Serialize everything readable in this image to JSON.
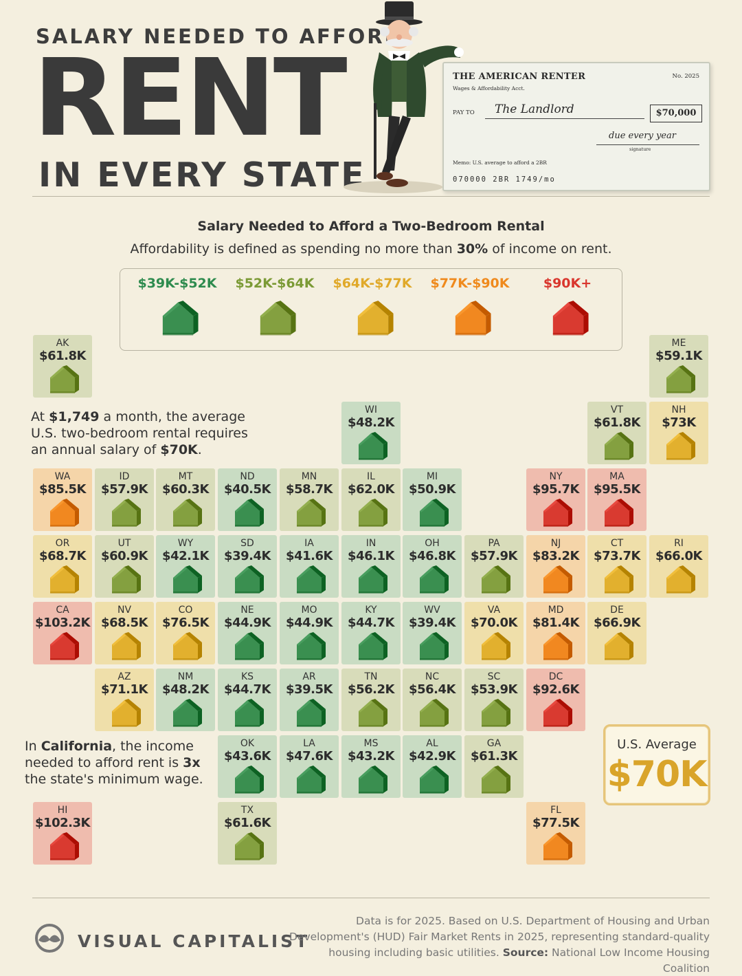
{
  "header": {
    "title_top": "SALARY NEEDED TO AFFORD",
    "title_big": "RENT",
    "title_bottom": "IN EVERY STATE"
  },
  "check": {
    "bank": "THE AMERICAN RENTER",
    "act": "Wages & Affordability Acct.",
    "number": "No. 2025",
    "pay_to_label": "PAY TO",
    "payee": "The Landlord",
    "amount": "$70,000",
    "signature": "due every year",
    "signature_label": "signature",
    "memo": "Memo: U.S. average to afford a 2BR",
    "micr": "070000  2BR  1749/mo"
  },
  "subtitle": "Salary Needed to Afford a Two-Bedroom Rental",
  "description": {
    "before": "Affordability is defined as spending no more than ",
    "bold": "30%",
    "after": " of income on rent."
  },
  "legend": [
    {
      "label": "$39K-$52K",
      "color": "#2e8b4e",
      "house": "#3a8f50"
    },
    {
      "label": "$52K-$64K",
      "color": "#7b9a35",
      "house": "#84a040"
    },
    {
      "label": "$64K-$77K",
      "color": "#e0a92a",
      "house": "#e2b02e"
    },
    {
      "label": "$77K-$90K",
      "color": "#ef8a1d",
      "house": "#f18820"
    },
    {
      "label": "$90K+",
      "color": "#d9362d",
      "house": "#d93a30"
    }
  ],
  "tiers": {
    "t1": {
      "tile": "#c9dcc3",
      "house": "#3a8f50"
    },
    "t2": {
      "tile": "#d8dcba",
      "house": "#84a040"
    },
    "t3": {
      "tile": "#efdfaa",
      "house": "#e2b02e"
    },
    "t4": {
      "tile": "#f5d5a9",
      "house": "#f18820"
    },
    "t5": {
      "tile": "#efbcae",
      "house": "#d93a30"
    }
  },
  "states": [
    {
      "abbr": "AK",
      "value": "$61.8K",
      "tier": "t2",
      "col": 0,
      "row": 0
    },
    {
      "abbr": "ME",
      "value": "$59.1K",
      "tier": "t2",
      "col": 10,
      "row": 0
    },
    {
      "abbr": "WI",
      "value": "$48.2K",
      "tier": "t1",
      "col": 5,
      "row": 1
    },
    {
      "abbr": "VT",
      "value": "$61.8K",
      "tier": "t2",
      "col": 9,
      "row": 1
    },
    {
      "abbr": "NH",
      "value": "$73K",
      "tier": "t3",
      "col": 10,
      "row": 1
    },
    {
      "abbr": "WA",
      "value": "$85.5K",
      "tier": "t4",
      "col": 0,
      "row": 2
    },
    {
      "abbr": "ID",
      "value": "$57.9K",
      "tier": "t2",
      "col": 1,
      "row": 2
    },
    {
      "abbr": "MT",
      "value": "$60.3K",
      "tier": "t2",
      "col": 2,
      "row": 2
    },
    {
      "abbr": "ND",
      "value": "$40.5K",
      "tier": "t1",
      "col": 3,
      "row": 2
    },
    {
      "abbr": "MN",
      "value": "$58.7K",
      "tier": "t2",
      "col": 4,
      "row": 2
    },
    {
      "abbr": "IL",
      "value": "$62.0K",
      "tier": "t2",
      "col": 5,
      "row": 2
    },
    {
      "abbr": "MI",
      "value": "$50.9K",
      "tier": "t1",
      "col": 6,
      "row": 2
    },
    {
      "abbr": "NY",
      "value": "$95.7K",
      "tier": "t5",
      "col": 8,
      "row": 2
    },
    {
      "abbr": "MA",
      "value": "$95.5K",
      "tier": "t5",
      "col": 9,
      "row": 2
    },
    {
      "abbr": "OR",
      "value": "$68.7K",
      "tier": "t3",
      "col": 0,
      "row": 3
    },
    {
      "abbr": "UT",
      "value": "$60.9K",
      "tier": "t2",
      "col": 1,
      "row": 3
    },
    {
      "abbr": "WY",
      "value": "$42.1K",
      "tier": "t1",
      "col": 2,
      "row": 3
    },
    {
      "abbr": "SD",
      "value": "$39.4K",
      "tier": "t1",
      "col": 3,
      "row": 3
    },
    {
      "abbr": "IA",
      "value": "$41.6K",
      "tier": "t1",
      "col": 4,
      "row": 3
    },
    {
      "abbr": "IN",
      "value": "$46.1K",
      "tier": "t1",
      "col": 5,
      "row": 3
    },
    {
      "abbr": "OH",
      "value": "$46.8K",
      "tier": "t1",
      "col": 6,
      "row": 3
    },
    {
      "abbr": "PA",
      "value": "$57.9K",
      "tier": "t2",
      "col": 7,
      "row": 3
    },
    {
      "abbr": "NJ",
      "value": "$83.2K",
      "tier": "t4",
      "col": 8,
      "row": 3
    },
    {
      "abbr": "CT",
      "value": "$73.7K",
      "tier": "t3",
      "col": 9,
      "row": 3
    },
    {
      "abbr": "RI",
      "value": "$66.0K",
      "tier": "t3",
      "col": 10,
      "row": 3
    },
    {
      "abbr": "CA",
      "value": "$103.2K",
      "tier": "t5",
      "col": 0,
      "row": 4
    },
    {
      "abbr": "NV",
      "value": "$68.5K",
      "tier": "t3",
      "col": 1,
      "row": 4
    },
    {
      "abbr": "CO",
      "value": "$76.5K",
      "tier": "t3",
      "col": 2,
      "row": 4
    },
    {
      "abbr": "NE",
      "value": "$44.9K",
      "tier": "t1",
      "col": 3,
      "row": 4
    },
    {
      "abbr": "MO",
      "value": "$44.9K",
      "tier": "t1",
      "col": 4,
      "row": 4
    },
    {
      "abbr": "KY",
      "value": "$44.7K",
      "tier": "t1",
      "col": 5,
      "row": 4
    },
    {
      "abbr": "WV",
      "value": "$39.4K",
      "tier": "t1",
      "col": 6,
      "row": 4
    },
    {
      "abbr": "VA",
      "value": "$70.0K",
      "tier": "t3",
      "col": 7,
      "row": 4
    },
    {
      "abbr": "MD",
      "value": "$81.4K",
      "tier": "t4",
      "col": 8,
      "row": 4
    },
    {
      "abbr": "DE",
      "value": "$66.9K",
      "tier": "t3",
      "col": 9,
      "row": 4
    },
    {
      "abbr": "AZ",
      "value": "$71.1K",
      "tier": "t3",
      "col": 1,
      "row": 5
    },
    {
      "abbr": "NM",
      "value": "$48.2K",
      "tier": "t1",
      "col": 2,
      "row": 5
    },
    {
      "abbr": "KS",
      "value": "$44.7K",
      "tier": "t1",
      "col": 3,
      "row": 5
    },
    {
      "abbr": "AR",
      "value": "$39.5K",
      "tier": "t1",
      "col": 4,
      "row": 5
    },
    {
      "abbr": "TN",
      "value": "$56.2K",
      "tier": "t2",
      "col": 5,
      "row": 5
    },
    {
      "abbr": "NC",
      "value": "$56.4K",
      "tier": "t2",
      "col": 6,
      "row": 5
    },
    {
      "abbr": "SC",
      "value": "$53.9K",
      "tier": "t2",
      "col": 7,
      "row": 5
    },
    {
      "abbr": "DC",
      "value": "$92.6K",
      "tier": "t5",
      "col": 8,
      "row": 5
    },
    {
      "abbr": "OK",
      "value": "$43.6K",
      "tier": "t1",
      "col": 3,
      "row": 6
    },
    {
      "abbr": "LA",
      "value": "$47.6K",
      "tier": "t1",
      "col": 4,
      "row": 6
    },
    {
      "abbr": "MS",
      "value": "$43.2K",
      "tier": "t1",
      "col": 5,
      "row": 6
    },
    {
      "abbr": "AL",
      "value": "$42.9K",
      "tier": "t1",
      "col": 6,
      "row": 6
    },
    {
      "abbr": "GA",
      "value": "$61.3K",
      "tier": "t2",
      "col": 7,
      "row": 6
    },
    {
      "abbr": "HI",
      "value": "$102.3K",
      "tier": "t5",
      "col": 0,
      "row": 7
    },
    {
      "abbr": "TX",
      "value": "$61.6K",
      "tier": "t2",
      "col": 3,
      "row": 7
    },
    {
      "abbr": "FL",
      "value": "$77.5K",
      "tier": "t4",
      "col": 8,
      "row": 7
    }
  ],
  "note_avg": {
    "p1": "At ",
    "b1": "$1,749",
    "p2": " a month, the average U.S. two-bedroom rental requires an annual salary of ",
    "b2": "$70K",
    "p3": "."
  },
  "note_ca": {
    "p1": "In ",
    "b1": "California",
    "p2": ", the income needed to afford rent is ",
    "b2": "3x",
    "p3": " the state's minimum wage."
  },
  "us_average": {
    "label": "U.S. Average",
    "value": "$70K"
  },
  "footer": {
    "brand": "VISUAL CAPITALIST",
    "source_text": "Data is for 2025. Based on U.S. Department of Housing and Urban Development's (HUD) Fair Market Rents in 2025, representing standard-quality housing including basic utilities. ",
    "source_label": "Source:",
    "source_name": " National Low Income Housing Coalition"
  }
}
